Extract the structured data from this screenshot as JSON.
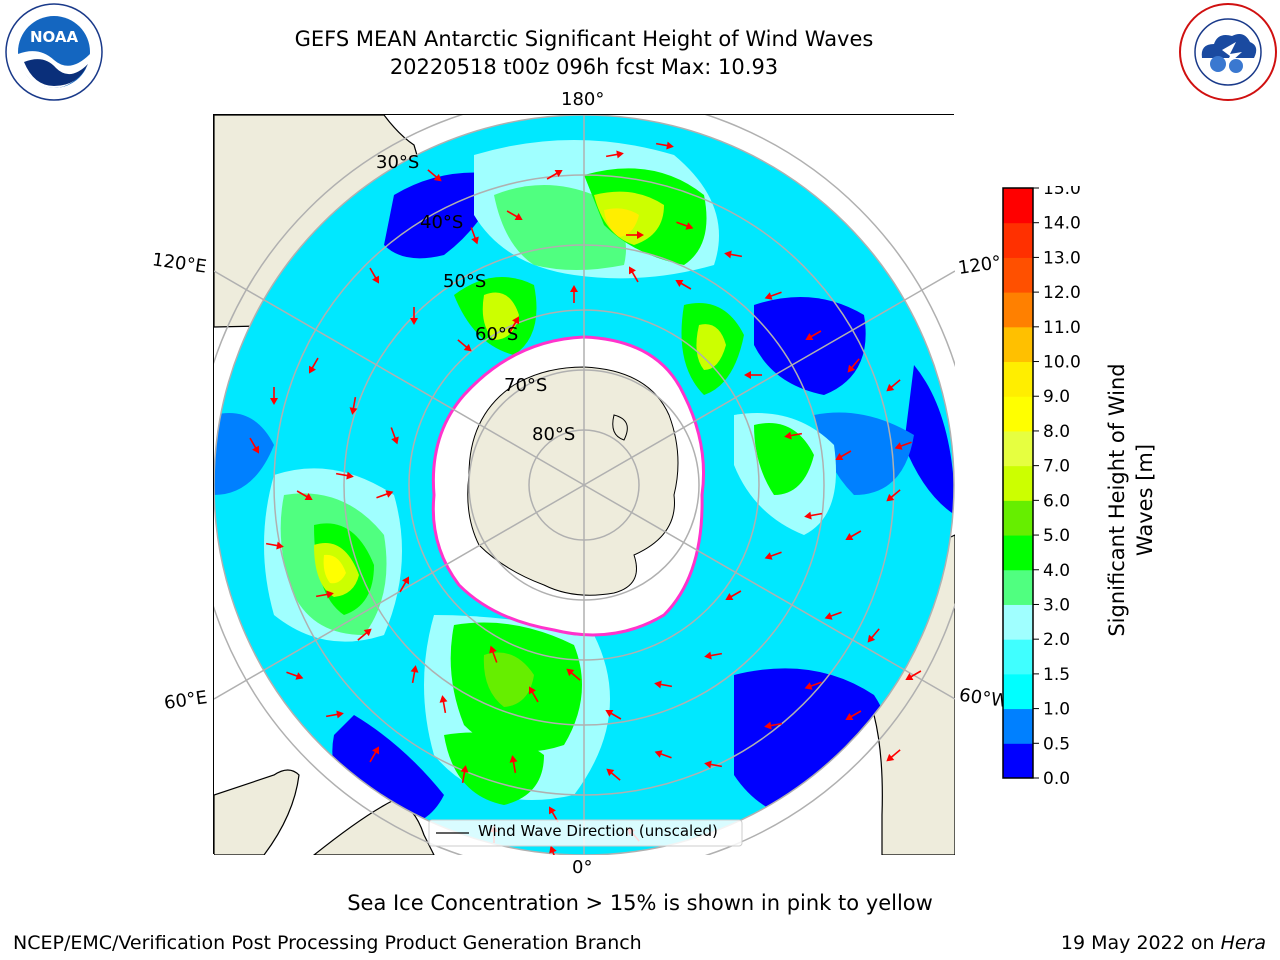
{
  "header": {
    "title_line1": "GEFS MEAN Antarctic Significant Height of Wind Waves",
    "title_line2": "20220518 t00z 096h fcst   Max: 10.93"
  },
  "logos": {
    "noaa": {
      "text": "NOAA",
      "ring_text": "NATIONAL OCEANIC AND ATMOSPHERIC ADMINISTRATION · U.S. DEPARTMENT OF COMMERCE"
    },
    "nws": {
      "ring_text": "NATIONAL WEATHER SERVICE"
    }
  },
  "map": {
    "longitude_labels": {
      "top": "180°",
      "bottom": "0°",
      "left_upper": "120°E",
      "left_lower": "60°E",
      "right_upper": "120°",
      "right_lower": "60°W"
    },
    "latitude_labels": [
      "30°S",
      "40°S",
      "50°S",
      "60°S",
      "70°S",
      "80°S"
    ],
    "legend_label": "Wind Wave Direction (unscaled)",
    "colors": {
      "land": "#eeecdc",
      "arrow": "#ff0000",
      "grid": "#b0b0b0",
      "ice_edge": "#ff33cc"
    }
  },
  "colorbar": {
    "title": "Significant Height of Wind Waves [m]",
    "ticks": [
      "0.0",
      "0.5",
      "1.0",
      "1.5",
      "2.0",
      "3.0",
      "4.0",
      "5.0",
      "6.0",
      "7.0",
      "8.0",
      "9.0",
      "10.0",
      "11.0",
      "12.0",
      "13.0",
      "14.0",
      "15.0"
    ],
    "colors": [
      "#0000ff",
      "#0080ff",
      "#00ffff",
      "#40ffff",
      "#a0ffff",
      "#50ff80",
      "#00ff00",
      "#66ee00",
      "#ccff00",
      "#e6ff40",
      "#ffff00",
      "#ffee00",
      "#ffc000",
      "#ff8000",
      "#ff5000",
      "#ff3000",
      "#ff0000"
    ]
  },
  "footer": {
    "ice_note": "Sea Ice Concentration > 15% is shown in pink to yellow",
    "org": "NCEP/EMC/Verification Post Processing Product Generation Branch",
    "date": "19 May 2022 on ",
    "machine": "Hera"
  }
}
